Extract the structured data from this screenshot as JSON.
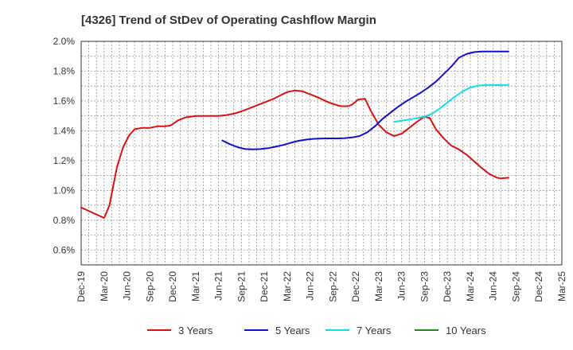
{
  "chart_data": {
    "type": "line",
    "title": "[4326]  Trend of StDev of Operating Cashflow Margin",
    "xlabel": "",
    "ylabel": "",
    "x_tick_labels": [
      "Dec-19",
      "Mar-20",
      "Jun-20",
      "Sep-20",
      "Dec-20",
      "Mar-21",
      "Jun-21",
      "Sep-21",
      "Dec-21",
      "Mar-22",
      "Jun-22",
      "Sep-22",
      "Dec-22",
      "Mar-23",
      "Jun-23",
      "Sep-23",
      "Dec-23",
      "Mar-24",
      "Jun-24",
      "Sep-24",
      "Dec-24",
      "Mar-25"
    ],
    "y_tick_labels": [
      "0.6%",
      "0.8%",
      "1.0%",
      "1.2%",
      "1.4%",
      "1.6%",
      "1.8%",
      "2.0%"
    ],
    "ylim": [
      0.5,
      2.0
    ],
    "grid": true,
    "legend_position": "bottom",
    "series": [
      {
        "name": "3 Years",
        "color": "#dd1111",
        "points": [
          [
            0,
            0.885
          ],
          [
            3,
            0.815
          ],
          [
            3.7,
            0.9
          ],
          [
            4.7,
            1.16
          ],
          [
            5.5,
            1.29
          ],
          [
            6.3,
            1.37
          ],
          [
            7,
            1.41
          ],
          [
            8,
            1.42
          ],
          [
            9,
            1.42
          ],
          [
            10,
            1.43
          ],
          [
            11,
            1.43
          ],
          [
            11.7,
            1.435
          ],
          [
            12.7,
            1.47
          ],
          [
            13.7,
            1.49
          ],
          [
            15,
            1.5
          ],
          [
            16,
            1.5
          ],
          [
            17,
            1.5
          ],
          [
            18,
            1.5
          ],
          [
            19,
            1.505
          ],
          [
            20,
            1.515
          ],
          [
            21,
            1.53
          ],
          [
            22,
            1.55
          ],
          [
            23,
            1.57
          ],
          [
            24,
            1.59
          ],
          [
            25,
            1.61
          ],
          [
            26,
            1.635
          ],
          [
            27,
            1.66
          ],
          [
            28,
            1.67
          ],
          [
            29,
            1.665
          ],
          [
            30,
            1.645
          ],
          [
            31,
            1.625
          ],
          [
            32,
            1.6
          ],
          [
            33,
            1.58
          ],
          [
            34,
            1.565
          ],
          [
            35,
            1.565
          ],
          [
            35.5,
            1.575
          ],
          [
            36.3,
            1.61
          ],
          [
            37.2,
            1.615
          ],
          [
            38,
            1.53
          ],
          [
            39,
            1.44
          ],
          [
            40,
            1.39
          ],
          [
            41,
            1.365
          ],
          [
            42,
            1.38
          ],
          [
            43,
            1.42
          ],
          [
            44,
            1.46
          ],
          [
            45,
            1.495
          ],
          [
            45.7,
            1.485
          ],
          [
            46.5,
            1.41
          ],
          [
            47.5,
            1.35
          ],
          [
            48.5,
            1.3
          ],
          [
            49.5,
            1.275
          ],
          [
            50.5,
            1.24
          ],
          [
            51.5,
            1.195
          ],
          [
            52.5,
            1.15
          ],
          [
            53.5,
            1.11
          ],
          [
            54.5,
            1.085
          ],
          [
            55,
            1.08
          ],
          [
            56,
            1.085
          ]
        ]
      },
      {
        "name": "5 Years",
        "color": "#1111cc",
        "points": [
          [
            18.5,
            1.335
          ],
          [
            19.5,
            1.31
          ],
          [
            20.5,
            1.29
          ],
          [
            21.5,
            1.277
          ],
          [
            22.5,
            1.275
          ],
          [
            23.5,
            1.277
          ],
          [
            24.5,
            1.283
          ],
          [
            25.5,
            1.293
          ],
          [
            26.5,
            1.305
          ],
          [
            27.5,
            1.32
          ],
          [
            28.5,
            1.333
          ],
          [
            29.5,
            1.341
          ],
          [
            30.5,
            1.346
          ],
          [
            31.5,
            1.348
          ],
          [
            32.5,
            1.349
          ],
          [
            33.5,
            1.349
          ],
          [
            34.5,
            1.35
          ],
          [
            35.5,
            1.355
          ],
          [
            36.5,
            1.365
          ],
          [
            37.5,
            1.39
          ],
          [
            38.5,
            1.43
          ],
          [
            39.5,
            1.48
          ],
          [
            40.5,
            1.52
          ],
          [
            41.5,
            1.56
          ],
          [
            42.5,
            1.595
          ],
          [
            43.5,
            1.625
          ],
          [
            44.5,
            1.655
          ],
          [
            45.5,
            1.69
          ],
          [
            46.5,
            1.73
          ],
          [
            47.5,
            1.78
          ],
          [
            48.5,
            1.83
          ],
          [
            49.5,
            1.89
          ],
          [
            50.5,
            1.915
          ],
          [
            51.5,
            1.928
          ],
          [
            52.5,
            1.932
          ],
          [
            53.5,
            1.932
          ],
          [
            54.5,
            1.932
          ],
          [
            56,
            1.932
          ]
        ]
      },
      {
        "name": "7 Years",
        "color": "#11ddee",
        "points": [
          [
            41,
            1.46
          ],
          [
            42,
            1.467
          ],
          [
            43,
            1.475
          ],
          [
            44,
            1.485
          ],
          [
            45,
            1.495
          ],
          [
            46,
            1.515
          ],
          [
            47,
            1.55
          ],
          [
            48,
            1.59
          ],
          [
            49,
            1.63
          ],
          [
            50,
            1.665
          ],
          [
            51,
            1.69
          ],
          [
            52,
            1.703
          ],
          [
            53,
            1.707
          ],
          [
            54,
            1.707
          ],
          [
            55,
            1.707
          ],
          [
            56,
            1.707
          ]
        ]
      },
      {
        "name": "10 Years",
        "color": "#228822",
        "points": []
      }
    ]
  }
}
